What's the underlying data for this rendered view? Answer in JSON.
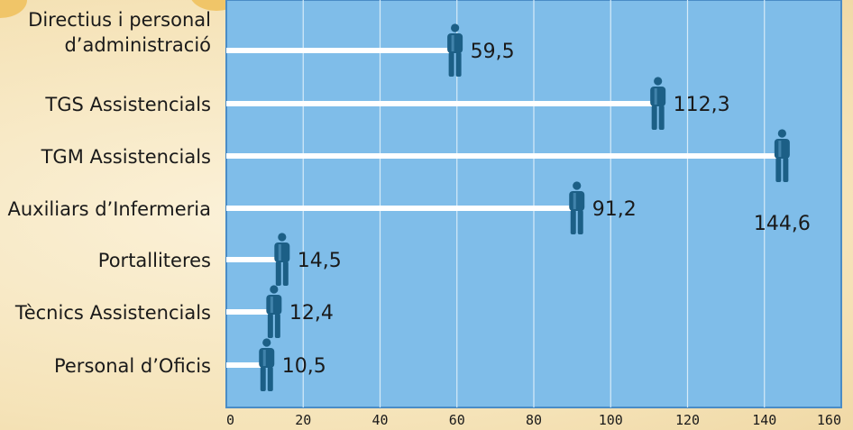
{
  "chart_data": {
    "type": "bar",
    "orientation": "horizontal",
    "categories": [
      "Directius i personal d’administració",
      "TGS Assistencials",
      "TGM Assistencials",
      "Auxiliars d’Infermeria",
      "Portalliteres",
      "Tècnics Assistencials",
      "Personal d’Oficis"
    ],
    "category_lines": [
      [
        "Directius i personal",
        "d’administració"
      ],
      [
        "TGS Assistencials"
      ],
      [
        "TGM Assistencials"
      ],
      [
        "Auxiliars d’Infermeria"
      ],
      [
        "Portalliteres"
      ],
      [
        "Tècnics Assistencials"
      ],
      [
        "Personal d’Oficis"
      ]
    ],
    "values": [
      59.5,
      112.3,
      144.6,
      91.2,
      14.5,
      12.4,
      10.5
    ],
    "value_labels": [
      "59,5",
      "112,3",
      "144,6",
      "91,2",
      "14,5",
      "12,4",
      "10,5"
    ],
    "xlim": [
      0,
      160
    ],
    "xticks": [
      0,
      20,
      40,
      60,
      80,
      100,
      120,
      140,
      160
    ],
    "xtick_labels": [
      "0",
      "20",
      "40",
      "60",
      "80",
      "100",
      "120",
      "140",
      "160"
    ],
    "grid": true,
    "marker_icon": "person-icon",
    "colors": {
      "plot_bg": "#7fbde9",
      "plot_border": "#4a8cc6",
      "grid": "#d6ebf8",
      "bar": "#ffffff",
      "icon": "#1c5f86",
      "text": "#1a1a1a"
    }
  }
}
